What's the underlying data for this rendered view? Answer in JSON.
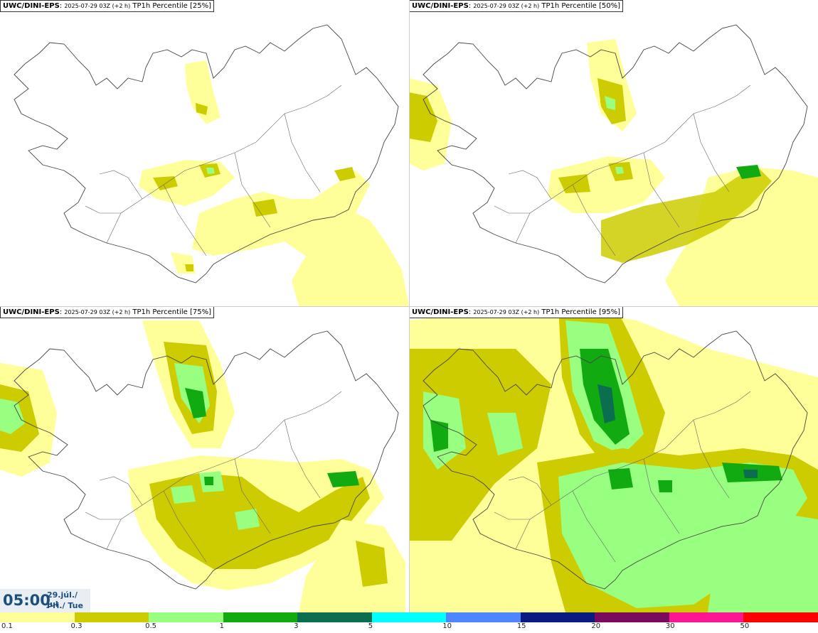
{
  "panels": [
    {
      "model": "UWC/DINI-EPS",
      "run": "2025-07-29 03Z (+2 h)",
      "field": "TP1h Percentile [25%]"
    },
    {
      "model": "UWC/DINI-EPS",
      "run": "2025-07-29 03Z (+2 h)",
      "field": "TP1h Percentile [50%]"
    },
    {
      "model": "UWC/DINI-EPS",
      "run": "2025-07-29 03Z (+2 h)",
      "field": "TP1h Percentile [75%]"
    },
    {
      "model": "UWC/DINI-EPS",
      "run": "2025-07-29 03Z (+2 h)",
      "field": "TP1h Percentile [95%]"
    }
  ],
  "timestamp": {
    "time": "05:00",
    "date_line1": "29.júl./ Jul",
    "date_line2": "Þri./ Tue"
  },
  "legend": {
    "ticks": [
      "0.1",
      "0.3",
      "0.5",
      "1",
      "3",
      "5",
      "10",
      "15",
      "20",
      "30",
      "50"
    ],
    "colors": [
      "#ffff99",
      "#cccc00",
      "#99ff80",
      "#11aa11",
      "#0b6e4f",
      "#00ffff",
      "#4f86ff",
      "#0b1a80",
      "#7a0a5e",
      "#ff1493",
      "#ff0000"
    ]
  }
}
